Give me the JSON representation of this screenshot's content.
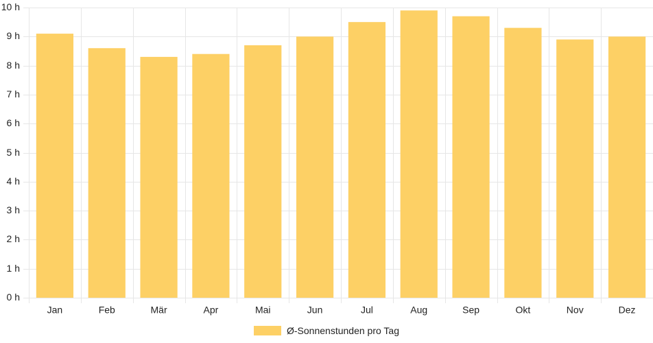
{
  "chart_data": {
    "type": "bar",
    "categories": [
      "Jan",
      "Feb",
      "Mär",
      "Apr",
      "Mai",
      "Jun",
      "Jul",
      "Aug",
      "Sep",
      "Okt",
      "Nov",
      "Dez"
    ],
    "series": [
      {
        "name": "Ø-Sonnenstunden pro Tag",
        "values": [
          9.1,
          8.6,
          8.3,
          8.4,
          8.7,
          9.0,
          9.5,
          9.9,
          9.7,
          9.3,
          8.9,
          9.0
        ]
      }
    ],
    "ylim": [
      0,
      10
    ],
    "yticks": [
      "0 h",
      "1 h",
      "2 h",
      "3 h",
      "4 h",
      "5 h",
      "6 h",
      "7 h",
      "8 h",
      "9 h",
      "10 h"
    ],
    "grid": true,
    "legend_position": "bottom",
    "colors": {
      "bar": "#fdd065",
      "grid": "#e6e6e6"
    }
  }
}
